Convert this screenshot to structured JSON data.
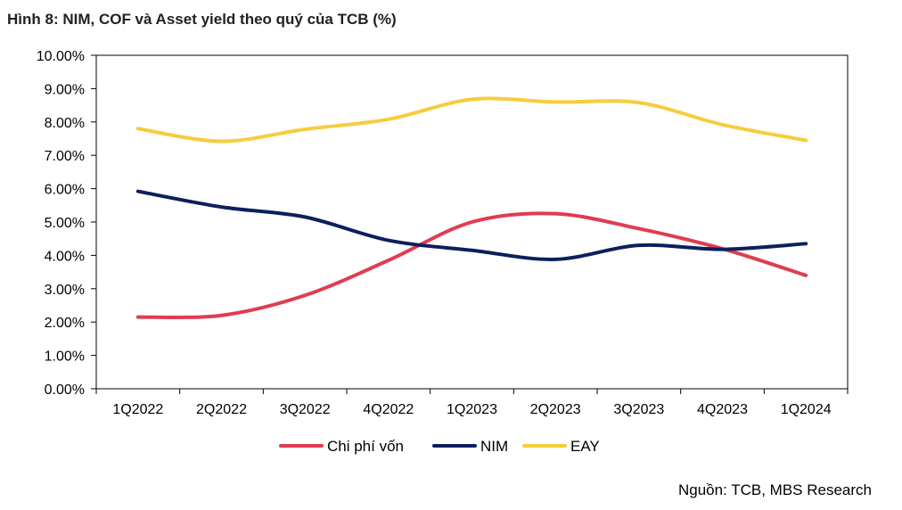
{
  "title": "Hình 8: NIM, COF và Asset yield theo quý của TCB (%)",
  "source": "Nguồn: TCB, MBS Research",
  "chart_data": {
    "type": "line",
    "categories": [
      "1Q2022",
      "2Q2022",
      "3Q2022",
      "4Q2022",
      "1Q2023",
      "2Q2023",
      "3Q2023",
      "4Q2023",
      "1Q2024"
    ],
    "y_ticks": [
      "0.00%",
      "1.00%",
      "2.00%",
      "3.00%",
      "4.00%",
      "5.00%",
      "6.00%",
      "7.00%",
      "8.00%",
      "9.00%",
      "10.00%"
    ],
    "ylim": [
      0,
      10
    ],
    "grid": false,
    "legend_position": "bottom",
    "series": [
      {
        "name": "Chi phí vốn",
        "color": "#e03c52",
        "values": [
          2.15,
          2.2,
          2.8,
          3.85,
          5.0,
          5.25,
          4.8,
          4.2,
          3.4
        ]
      },
      {
        "name": "NIM",
        "color": "#0d1f5c",
        "values": [
          5.92,
          5.45,
          5.15,
          4.45,
          4.15,
          3.88,
          4.3,
          4.18,
          4.35
        ]
      },
      {
        "name": "EAY",
        "color": "#f7cc3d",
        "values": [
          7.8,
          7.42,
          7.78,
          8.08,
          8.68,
          8.6,
          8.58,
          7.92,
          7.45
        ]
      }
    ]
  }
}
